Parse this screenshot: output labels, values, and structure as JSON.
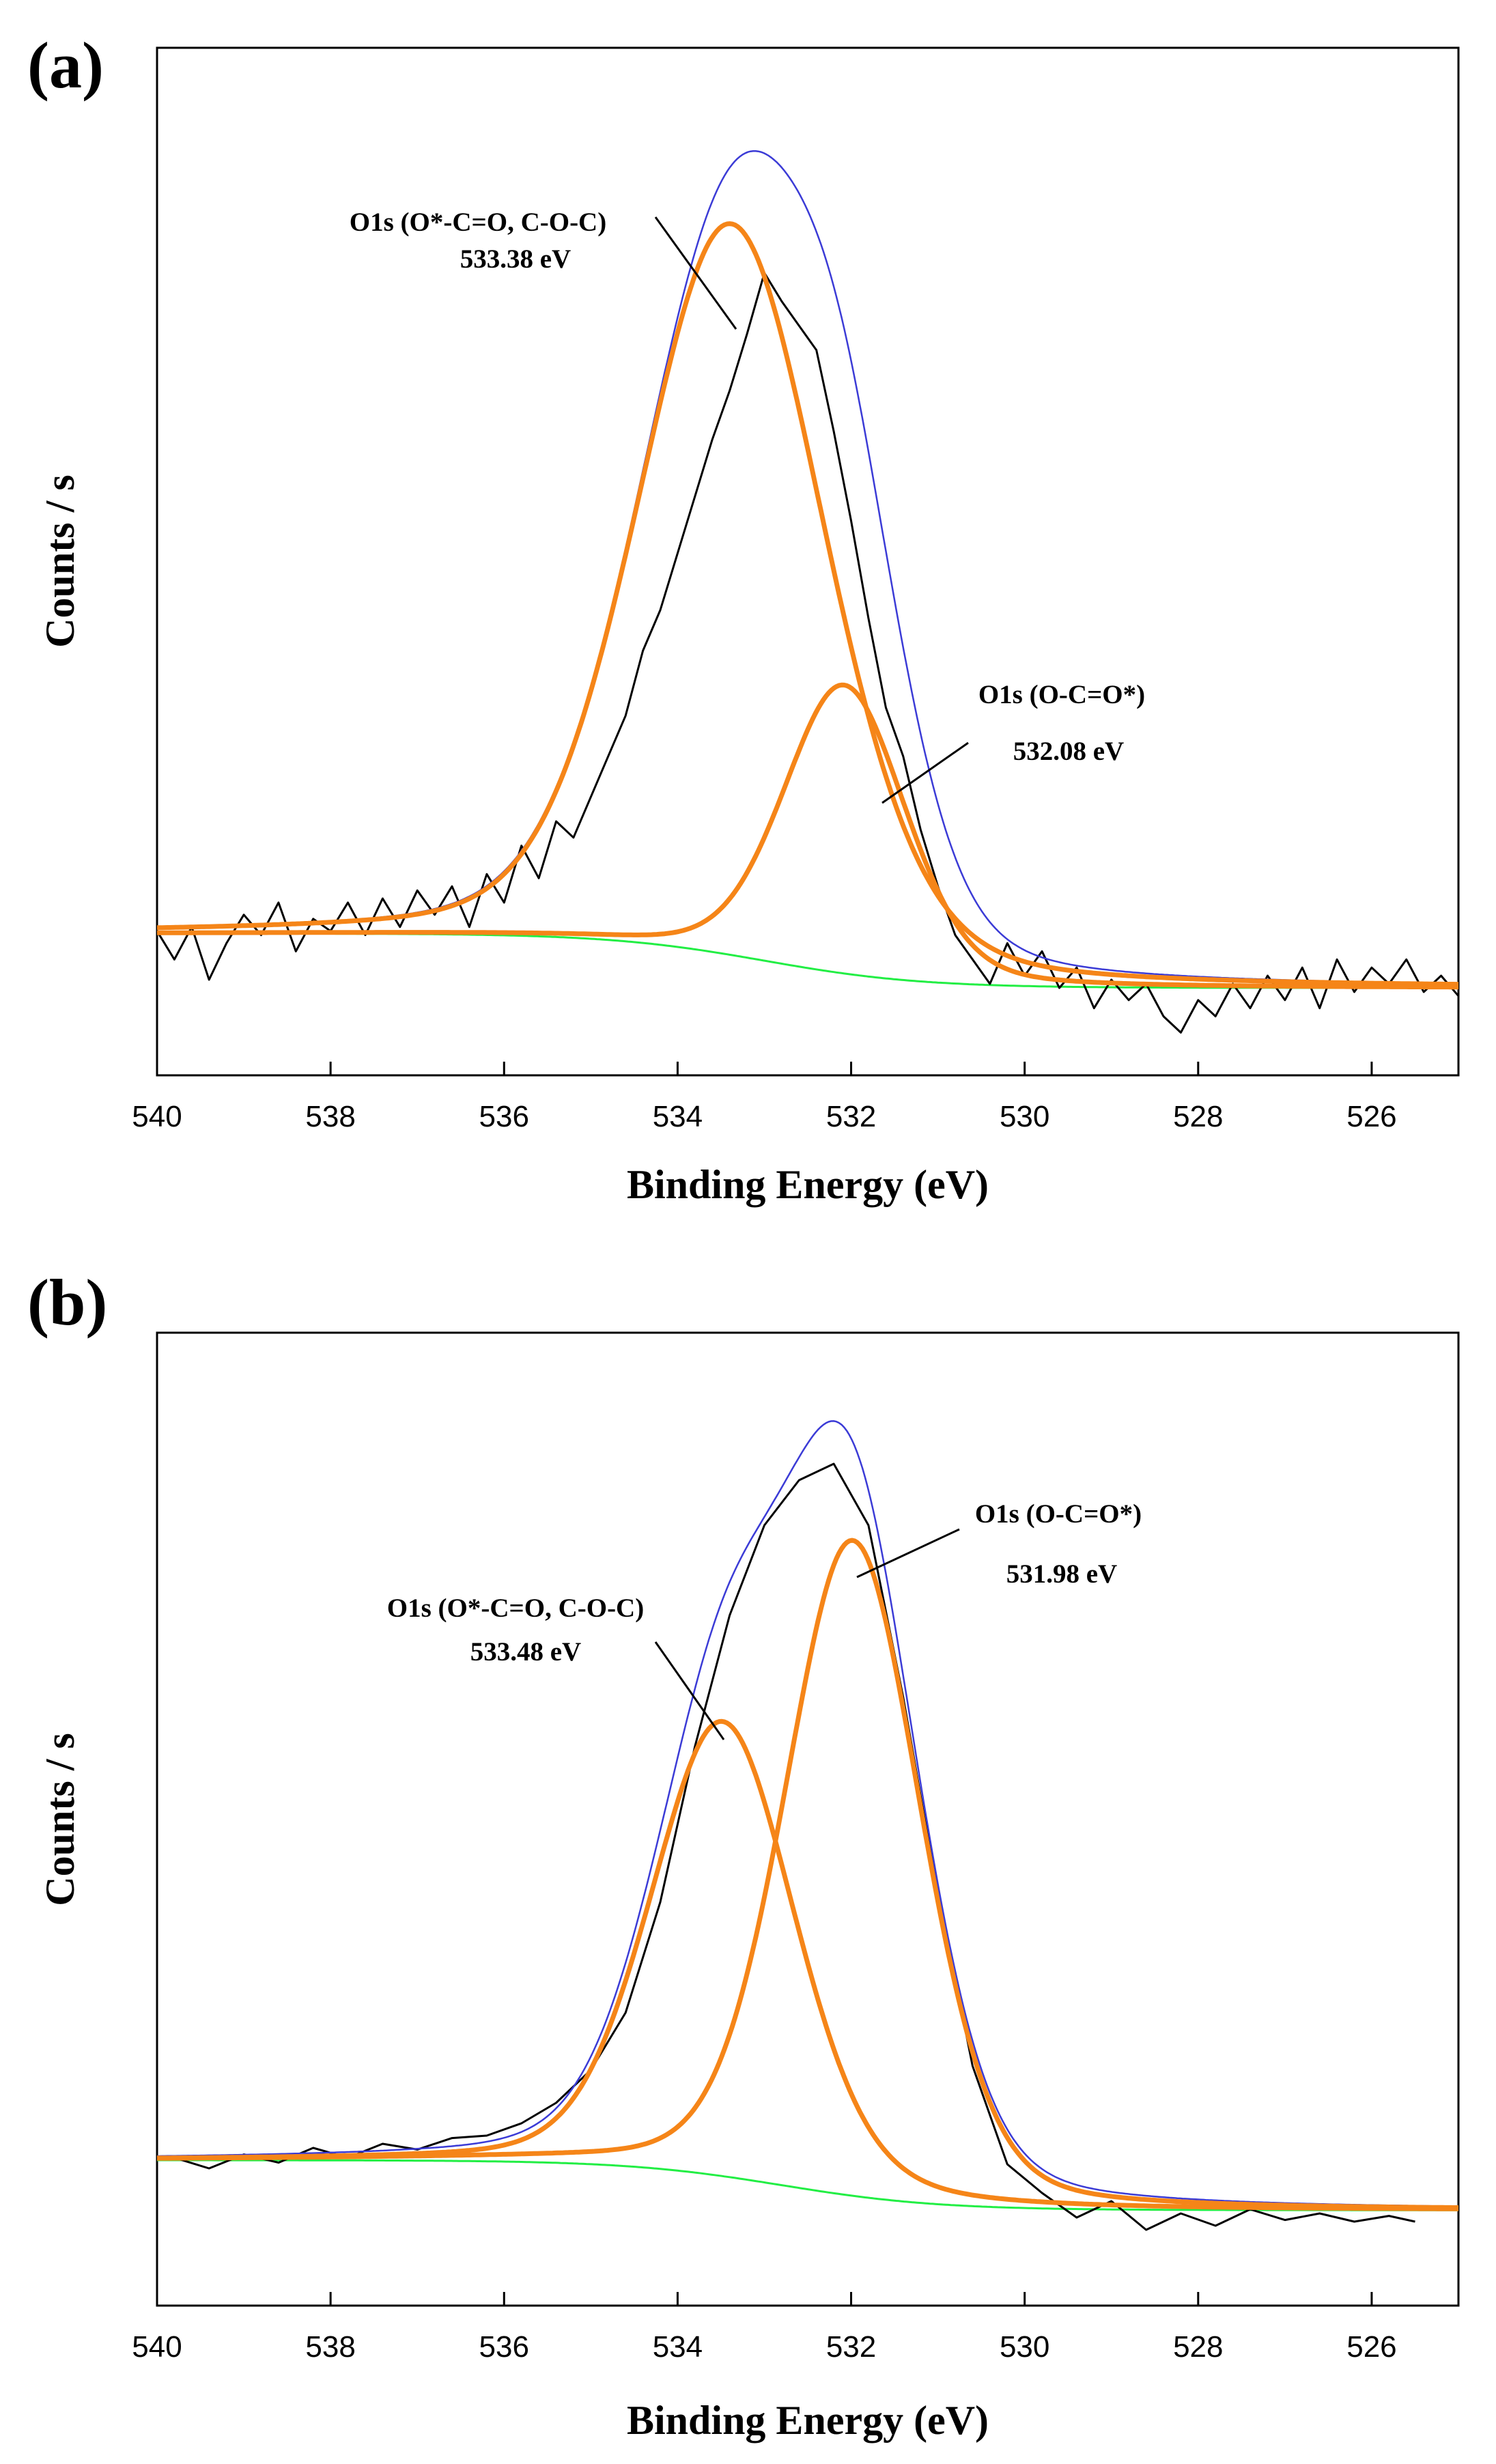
{
  "chart_data": [
    {
      "panel": "(a)",
      "type": "line",
      "xlabel": "Binding Energy (eV)",
      "ylabel": "Counts / s",
      "xlim": [
        540,
        525
      ],
      "ylim": [
        0,
        1.0
      ],
      "x_ticks": [
        540,
        538,
        536,
        534,
        532,
        530,
        528,
        526
      ],
      "x_tick_labels": [
        "540",
        "538",
        "536",
        "534",
        "532",
        "530",
        "528",
        "526"
      ],
      "raw": {
        "name": "measured",
        "color": "#000000",
        "x": [
          540.0,
          539.8,
          539.6,
          539.4,
          539.2,
          539.0,
          538.8,
          538.6,
          538.4,
          538.2,
          538.0,
          537.8,
          537.6,
          537.4,
          537.2,
          537.0,
          536.8,
          536.6,
          536.4,
          536.2,
          536.0,
          535.8,
          535.6,
          535.4,
          535.2,
          535.0,
          534.8,
          534.6,
          534.4,
          534.2,
          534.0,
          533.8,
          533.6,
          533.4,
          533.2,
          533.0,
          532.8,
          532.6,
          532.4,
          532.2,
          532.0,
          531.8,
          531.6,
          531.4,
          531.2,
          531.0,
          530.8,
          530.6,
          530.4,
          530.2,
          530.0,
          529.8,
          529.6,
          529.4,
          529.2,
          529.0,
          528.8,
          528.6,
          528.4,
          528.2,
          528.0,
          527.8,
          527.6,
          527.4,
          527.2,
          527.0,
          526.8,
          526.6,
          526.4,
          526.2,
          526.0,
          525.8,
          525.6,
          525.4,
          525.2,
          525.0
        ],
        "y": [
          0.165,
          0.13,
          0.17,
          0.105,
          0.15,
          0.185,
          0.16,
          0.2,
          0.14,
          0.18,
          0.165,
          0.2,
          0.16,
          0.205,
          0.17,
          0.215,
          0.185,
          0.22,
          0.17,
          0.235,
          0.2,
          0.27,
          0.23,
          0.3,
          0.28,
          0.33,
          0.38,
          0.43,
          0.51,
          0.56,
          0.63,
          0.7,
          0.77,
          0.83,
          0.9,
          0.975,
          0.94,
          0.91,
          0.88,
          0.78,
          0.67,
          0.55,
          0.44,
          0.38,
          0.29,
          0.22,
          0.16,
          0.13,
          0.1,
          0.15,
          0.11,
          0.14,
          0.095,
          0.12,
          0.07,
          0.105,
          0.08,
          0.1,
          0.06,
          0.04,
          0.08,
          0.06,
          0.1,
          0.07,
          0.11,
          0.08,
          0.12,
          0.07,
          0.13,
          0.09,
          0.12,
          0.1,
          0.13,
          0.09,
          0.11,
          0.085
        ]
      },
      "series": [
        {
          "name": "envelope fit",
          "color": "#3b3bd6",
          "shape": "sum",
          "components": [
            0,
            1
          ]
        },
        {
          "name": "O1s (O*-C=O, C-O-C)",
          "color": "#f58518",
          "shape": "peak",
          "center": 533.38,
          "height": 0.9,
          "fwhm": 2.55
        },
        {
          "name": "O1s (O-C=O*)",
          "color": "#f58518",
          "shape": "peak",
          "center": 532.08,
          "height": 0.355,
          "fwhm": 1.65
        },
        {
          "name": "background",
          "color": "#22ee44",
          "shape": "background",
          "high": 0.162,
          "low": 0.095,
          "center": 533.0,
          "width": 0.9
        }
      ],
      "annotations": [
        {
          "line1": "O1s (O*-C=O, C-O-C)",
          "line2": "533.38 eV",
          "side": "left"
        },
        {
          "line1": "O1s (O-C=O*)",
          "line2": "532.08 eV",
          "side": "right"
        }
      ]
    },
    {
      "panel": "(b)",
      "type": "line",
      "xlabel": "Binding Energy (eV)",
      "ylabel": "Counts / s",
      "xlim": [
        540,
        525
      ],
      "ylim": [
        0,
        1.0
      ],
      "x_ticks": [
        540,
        538,
        536,
        534,
        532,
        530,
        528,
        526
      ],
      "x_tick_labels": [
        "540",
        "538",
        "536",
        "534",
        "532",
        "530",
        "528",
        "526"
      ],
      "raw": {
        "name": "measured",
        "color": "#000000",
        "x": [
          539.8,
          539.4,
          539.0,
          538.6,
          538.2,
          537.8,
          537.4,
          537.0,
          536.6,
          536.2,
          535.8,
          535.4,
          535.0,
          534.6,
          534.2,
          533.8,
          533.4,
          533.0,
          532.6,
          532.2,
          531.8,
          531.4,
          531.0,
          530.6,
          530.2,
          529.8,
          529.4,
          529.0,
          528.6,
          528.2,
          527.8,
          527.4,
          527.0,
          526.6,
          526.2,
          525.8,
          525.5
        ],
        "y": [
          0.158,
          0.145,
          0.162,
          0.152,
          0.17,
          0.158,
          0.175,
          0.168,
          0.182,
          0.185,
          0.2,
          0.225,
          0.265,
          0.335,
          0.47,
          0.66,
          0.82,
          0.93,
          0.985,
          1.005,
          0.93,
          0.72,
          0.48,
          0.27,
          0.15,
          0.115,
          0.085,
          0.105,
          0.07,
          0.09,
          0.075,
          0.095,
          0.082,
          0.09,
          0.08,
          0.087,
          0.08
        ]
      },
      "series": [
        {
          "name": "envelope fit",
          "color": "#3b3bd6",
          "shape": "sum",
          "components": [
            0,
            1
          ]
        },
        {
          "name": "O1s (O*-C=O, C-O-C)",
          "color": "#f58518",
          "shape": "peak",
          "center": 533.48,
          "height": 0.555,
          "fwhm": 1.95
        },
        {
          "name": "O1s (O-C=O*)",
          "color": "#f58518",
          "shape": "peak",
          "center": 531.98,
          "height": 0.8,
          "fwhm": 1.85
        },
        {
          "name": "background",
          "color": "#22ee44",
          "shape": "background",
          "high": 0.155,
          "low": 0.094,
          "center": 532.8,
          "width": 0.9
        }
      ],
      "annotations": [
        {
          "line1": "O1s (O-C=O*)",
          "line2": "531.98 eV",
          "side": "right"
        },
        {
          "line1": "O1s (O*-C=O, C-O-C)",
          "line2": "533.48 eV",
          "side": "left"
        }
      ]
    }
  ]
}
